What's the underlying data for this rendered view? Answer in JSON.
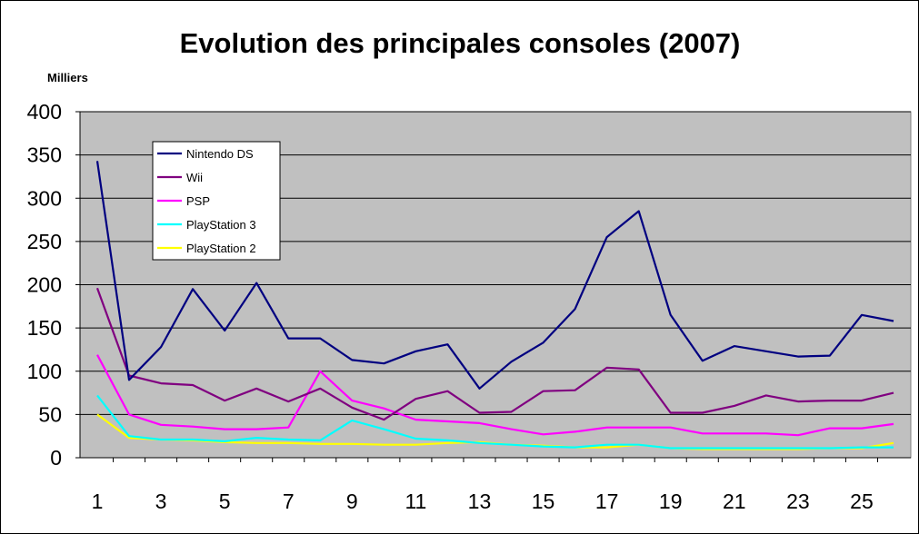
{
  "chart_data": {
    "type": "line",
    "title": "Evolution des principales consoles (2007)",
    "unit_label": "Milliers",
    "xlabel": "",
    "ylabel": "",
    "ylim": [
      0,
      400
    ],
    "yticks": [
      0,
      50,
      100,
      150,
      200,
      250,
      300,
      350,
      400
    ],
    "x": [
      1,
      2,
      3,
      4,
      5,
      6,
      7,
      8,
      9,
      10,
      11,
      12,
      13,
      14,
      15,
      16,
      17,
      18,
      19,
      20,
      21,
      22,
      23,
      24,
      25,
      26
    ],
    "xtick_labels": [
      "1",
      "3",
      "5",
      "7",
      "9",
      "11",
      "13",
      "15",
      "17",
      "19",
      "21",
      "23",
      "25"
    ],
    "grid": true,
    "legend_position": "top-left",
    "plot_background": "#c0c0c0",
    "series": [
      {
        "name": "Nintendo DS",
        "color": "#000080",
        "values": [
          343,
          90,
          128,
          195,
          147,
          202,
          138,
          138,
          113,
          109,
          123,
          131,
          80,
          111,
          133,
          172,
          255,
          285,
          165,
          112,
          129,
          123,
          117,
          118,
          165,
          158
        ]
      },
      {
        "name": "Wii",
        "color": "#800080",
        "values": [
          196,
          95,
          86,
          84,
          66,
          80,
          65,
          80,
          58,
          44,
          68,
          77,
          52,
          53,
          77,
          78,
          104,
          102,
          52,
          52,
          60,
          72,
          65,
          66,
          66,
          75
        ]
      },
      {
        "name": "PSP",
        "color": "#ff00ff",
        "values": [
          119,
          50,
          38,
          36,
          33,
          33,
          35,
          100,
          66,
          57,
          44,
          42,
          40,
          33,
          27,
          30,
          35,
          35,
          35,
          28,
          28,
          28,
          26,
          34,
          34,
          39
        ]
      },
      {
        "name": "PlayStation 3",
        "color": "#00ffff",
        "values": [
          72,
          25,
          21,
          21,
          19,
          23,
          21,
          20,
          43,
          33,
          22,
          20,
          17,
          15,
          13,
          12,
          15,
          15,
          11,
          11,
          11,
          11,
          11,
          11,
          12,
          12
        ]
      },
      {
        "name": "PlayStation 2",
        "color": "#ffff00",
        "values": [
          50,
          23,
          21,
          20,
          18,
          17,
          17,
          16,
          16,
          15,
          15,
          17,
          18,
          15,
          14,
          12,
          12,
          15,
          11,
          10,
          10,
          10,
          10,
          11,
          11,
          17
        ]
      }
    ]
  }
}
